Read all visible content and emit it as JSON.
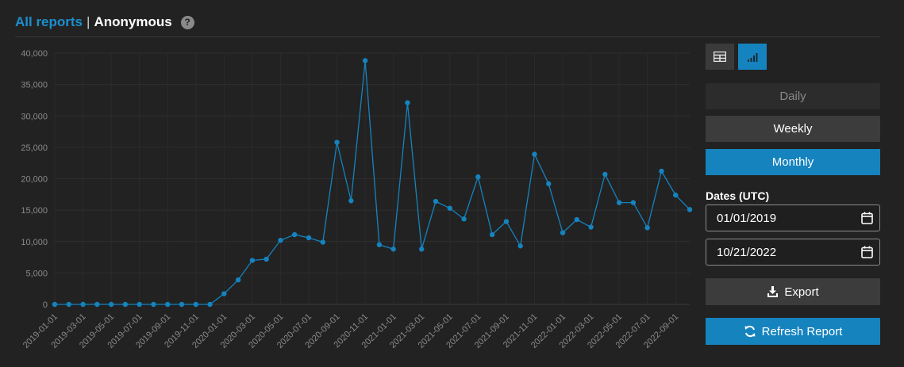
{
  "breadcrumb": {
    "link_label": "All reports",
    "separator": "|",
    "current": "Anonymous",
    "help_icon": "question-circle-icon"
  },
  "view_toggle": {
    "table_icon": "table-icon",
    "chart_icon": "bar-chart-icon",
    "active": "chart"
  },
  "period": {
    "options": [
      "Daily",
      "Weekly",
      "Monthly"
    ],
    "selected": "Monthly"
  },
  "dates": {
    "label": "Dates (UTC)",
    "from": "01/01/2019",
    "to": "10/21/2022",
    "calendar_icon": "calendar-icon"
  },
  "actions": {
    "export_label": "Export",
    "export_icon": "download-icon",
    "refresh_label": "Refresh Report",
    "refresh_icon": "refresh-icon"
  },
  "colors": {
    "accent": "#1583be",
    "link": "#1b8fcf",
    "background": "#222222"
  },
  "chart_data": {
    "type": "line",
    "x": [
      "2019-01-01",
      "2019-02-01",
      "2019-03-01",
      "2019-04-01",
      "2019-05-01",
      "2019-06-01",
      "2019-07-01",
      "2019-08-01",
      "2019-09-01",
      "2019-10-01",
      "2019-11-01",
      "2019-12-01",
      "2020-01-01",
      "2020-02-01",
      "2020-03-01",
      "2020-04-01",
      "2020-05-01",
      "2020-06-01",
      "2020-07-01",
      "2020-08-01",
      "2020-09-01",
      "2020-10-01",
      "2020-11-01",
      "2020-12-01",
      "2021-01-01",
      "2021-02-01",
      "2021-03-01",
      "2021-04-01",
      "2021-05-01",
      "2021-06-01",
      "2021-07-01",
      "2021-08-01",
      "2021-09-01",
      "2021-10-01",
      "2021-11-01",
      "2021-12-01",
      "2022-01-01",
      "2022-02-01",
      "2022-03-01",
      "2022-04-01",
      "2022-05-01",
      "2022-06-01",
      "2022-07-01",
      "2022-08-01",
      "2022-09-01",
      "2022-10-01"
    ],
    "x_tick_labels": [
      "2019-01-01",
      "2019-03-01",
      "2019-05-01",
      "2019-07-01",
      "2019-09-01",
      "2019-11-01",
      "2020-01-01",
      "2020-03-01",
      "2020-05-01",
      "2020-07-01",
      "2020-09-01",
      "2020-11-01",
      "2021-01-01",
      "2021-03-01",
      "2021-05-01",
      "2021-07-01",
      "2021-09-01",
      "2021-11-01",
      "2022-01-01",
      "2022-03-01",
      "2022-05-01",
      "2022-07-01",
      "2022-09-01"
    ],
    "series": [
      {
        "values": [
          0,
          0,
          0,
          0,
          0,
          0,
          0,
          0,
          0,
          0,
          0,
          0,
          1700,
          3900,
          7000,
          7200,
          10200,
          11100,
          10600,
          9900,
          25800,
          16500,
          38800,
          9500,
          8800,
          32100,
          8800,
          16400,
          15300,
          13600,
          20300,
          11100,
          13200,
          9300,
          23900,
          19200,
          11400,
          13500,
          12300,
          20700,
          16200,
          16200,
          12200,
          21200,
          17400,
          15100
        ]
      }
    ],
    "y_ticks": [
      "0",
      "5,000",
      "10,000",
      "15,000",
      "20,000",
      "25,000",
      "30,000",
      "35,000",
      "40,000"
    ],
    "ylim": [
      0,
      40000
    ],
    "grid": true,
    "line_color": "#1583be"
  }
}
